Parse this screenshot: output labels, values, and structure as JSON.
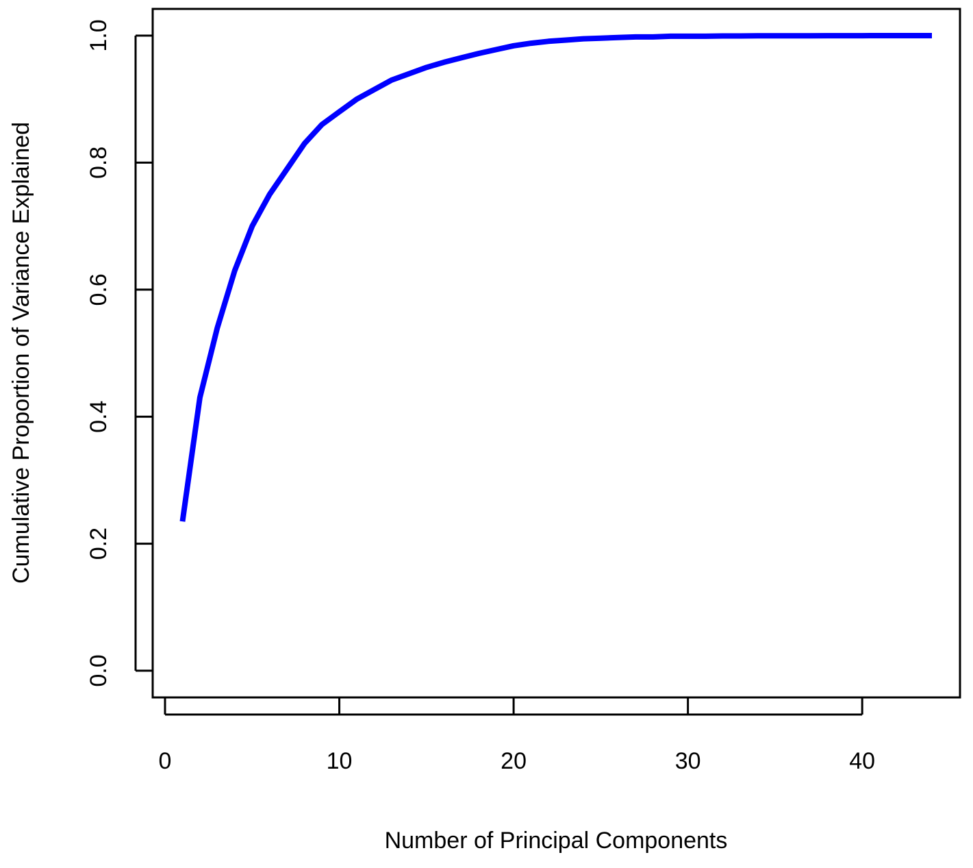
{
  "chart_data": {
    "type": "line",
    "title": "",
    "xlabel": "Number of Principal Components",
    "ylabel": "Cumulative Proportion of Variance Explained",
    "xlim": [
      0,
      44
    ],
    "ylim": [
      0,
      1
    ],
    "xticks": [
      0,
      10,
      20,
      30,
      40
    ],
    "yticks": [
      0.0,
      0.2,
      0.4,
      0.6,
      0.8,
      1.0
    ],
    "xtick_labels": [
      "0",
      "10",
      "20",
      "30",
      "40"
    ],
    "ytick_labels": [
      "0.0",
      "0.2",
      "0.4",
      "0.6",
      "0.8",
      "1.0"
    ],
    "grid": false,
    "series": [
      {
        "color": "#0000ff",
        "x": [
          1,
          2,
          3,
          4,
          5,
          6,
          7,
          8,
          9,
          10,
          11,
          12,
          13,
          14,
          15,
          16,
          17,
          18,
          19,
          20,
          21,
          22,
          23,
          24,
          25,
          26,
          27,
          28,
          29,
          30,
          31,
          32,
          33,
          34,
          35,
          36,
          37,
          38,
          39,
          40,
          41,
          42,
          43,
          44
        ],
        "y": [
          0.235,
          0.43,
          0.54,
          0.63,
          0.7,
          0.75,
          0.79,
          0.83,
          0.86,
          0.88,
          0.9,
          0.915,
          0.93,
          0.94,
          0.95,
          0.958,
          0.965,
          0.972,
          0.978,
          0.984,
          0.988,
          0.991,
          0.993,
          0.995,
          0.996,
          0.997,
          0.998,
          0.998,
          0.999,
          0.999,
          0.999,
          0.9995,
          0.9995,
          0.9997,
          0.9997,
          0.9998,
          0.9998,
          0.9999,
          0.9999,
          0.9999,
          1.0,
          1.0,
          1.0,
          1.0
        ]
      }
    ]
  }
}
